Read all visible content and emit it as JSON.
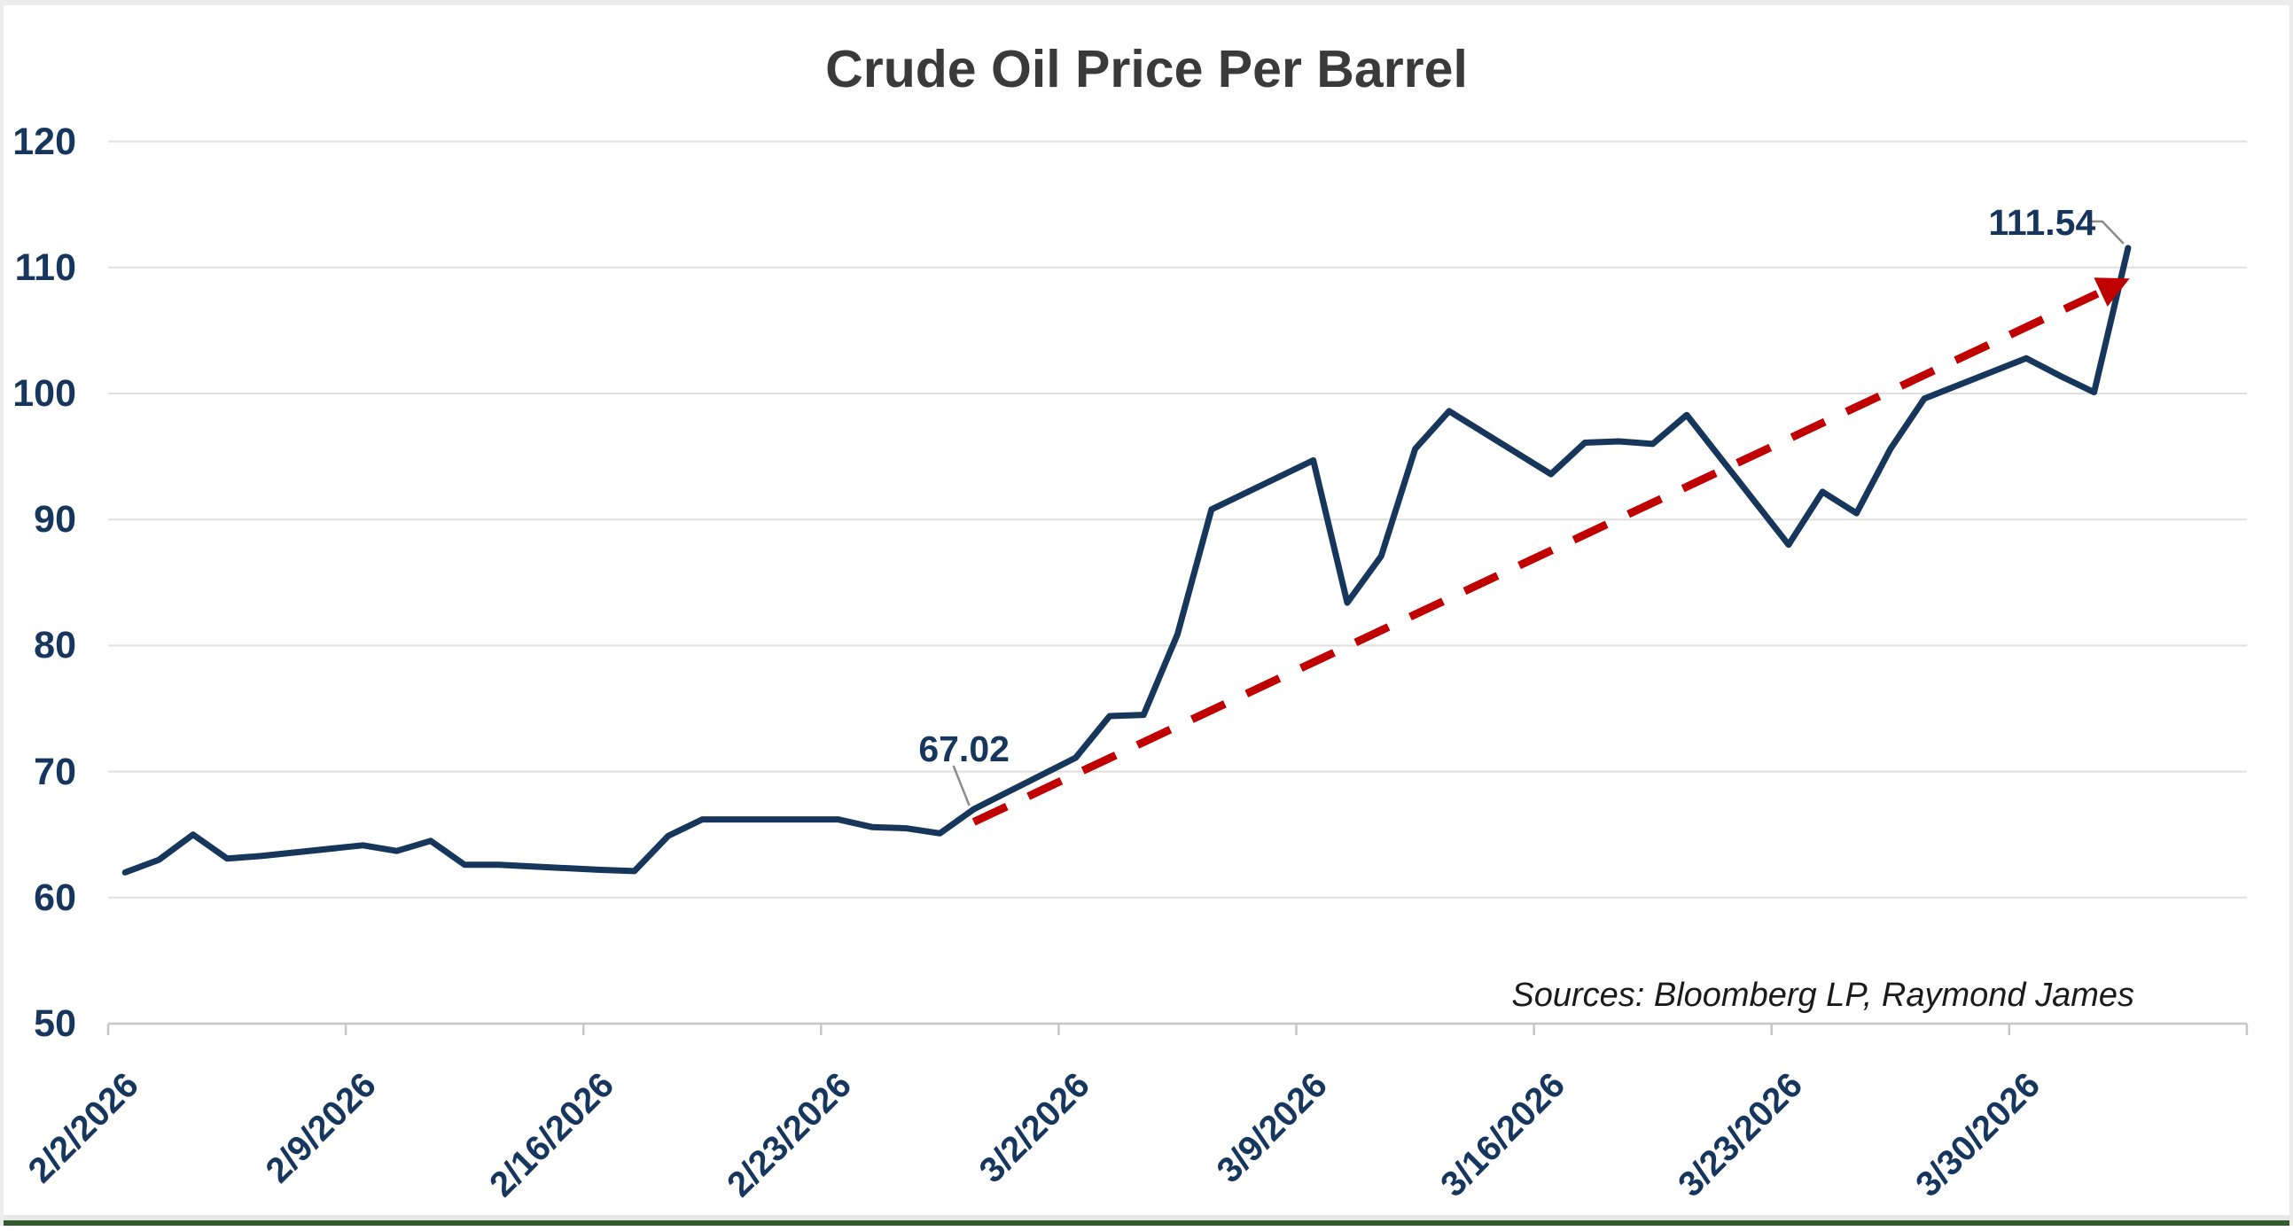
{
  "title": "Crude Oil Price Per Barrel",
  "source_note": "Sources: Bloomberg LP, Raymond James",
  "annotations": {
    "first_label": "67.02",
    "first_date": "2/27/2026",
    "last_label": "111.54",
    "last_date": "4/2/2026"
  },
  "colors": {
    "line_navy": "#17365C",
    "trend_red": "#C00000",
    "label_navy": "#17365D",
    "title_gray": "#3A3A3A",
    "sources_black": "#1A1A1A",
    "gridline_gray": "#DFDFDF",
    "axis_gray": "#C6C6C6",
    "leader_gray": "#8C8C8C",
    "accent_green": "#305C2E",
    "border_gray": "#ECECEC"
  },
  "chart_data": {
    "type": "line",
    "title": "Crude Oil Price Per Barrel",
    "xlabel": "",
    "ylabel": "",
    "ylim": [
      50,
      120
    ],
    "y_ticks": [
      120,
      110,
      100,
      90,
      80,
      70,
      60,
      50
    ],
    "x_tick_labels": [
      "2/2/2026",
      "2/9/2026",
      "2/16/2026",
      "2/23/2026",
      "3/2/2026",
      "3/9/2026",
      "3/16/2026",
      "3/23/2026",
      "3/30/2026"
    ],
    "grid": true,
    "legend": false,
    "series": [
      {
        "name": "Crude Oil Price",
        "dates": [
          "2/2/2026",
          "2/3/2026",
          "2/4/2026",
          "2/5/2026",
          "2/6/2026",
          "2/9/2026",
          "2/10/2026",
          "2/11/2026",
          "2/12/2026",
          "2/13/2026",
          "2/16/2026",
          "2/17/2026",
          "2/18/2026",
          "2/19/2026",
          "2/20/2026",
          "2/23/2026",
          "2/24/2026",
          "2/25/2026",
          "2/26/2026",
          "2/27/2026",
          "3/2/2026",
          "3/3/2026",
          "3/4/2026",
          "3/5/2026",
          "3/6/2026",
          "3/9/2026",
          "3/10/2026",
          "3/11/2026",
          "3/12/2026",
          "3/13/2026",
          "3/16/2026",
          "3/17/2026",
          "3/18/2026",
          "3/19/2026",
          "3/20/2026",
          "3/23/2026",
          "3/24/2026",
          "3/25/2026",
          "3/26/2026",
          "3/27/2026",
          "3/30/2026",
          "3/31/2026",
          "4/1/2026",
          "4/2/2026"
        ],
        "values": [
          62.0,
          63.0,
          65.0,
          63.1,
          63.3,
          64.15,
          63.7,
          64.5,
          62.6,
          62.6,
          62.2,
          62.1,
          64.9,
          66.2,
          66.2,
          66.2,
          65.6,
          65.5,
          65.1,
          67.02,
          71.1,
          74.4,
          74.5,
          80.9,
          90.8,
          94.7,
          83.4,
          87.1,
          95.6,
          98.6,
          93.6,
          96.1,
          96.2,
          96.0,
          98.3,
          88.0,
          92.2,
          90.5,
          95.6,
          99.6,
          102.8,
          101.4,
          100.1,
          111.54
        ]
      }
    ],
    "trend_line": {
      "style": "dashed-arrow",
      "start_date": "2/27/2026",
      "start_value": 66.0,
      "end_date": "4/2/2026",
      "end_value": 108.8
    }
  }
}
